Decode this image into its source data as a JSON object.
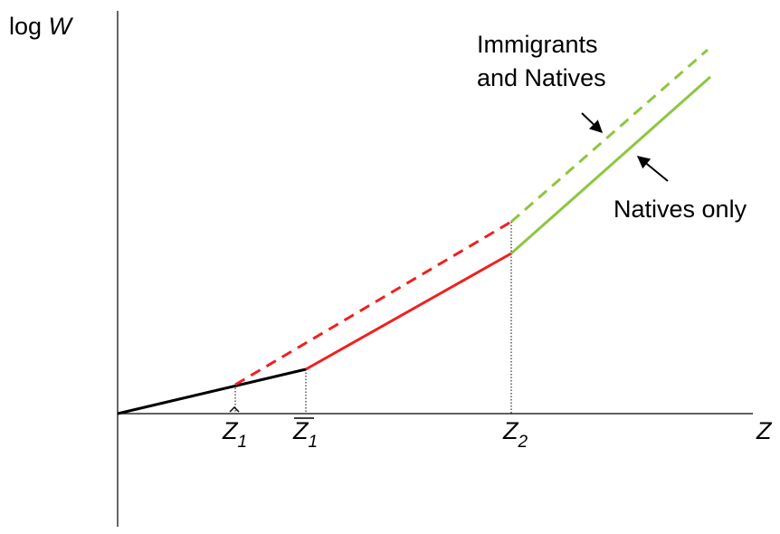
{
  "y_axis_label": {
    "prefix": "log",
    "variable": "W"
  },
  "x_axis_label": "Z",
  "thresholds": [
    {
      "symbol": "Z",
      "subscript": "1"
    },
    {
      "symbol": "Z",
      "subscript": "1"
    },
    {
      "symbol": "Z",
      "subscript": "2"
    }
  ],
  "annotations": {
    "immigrants_and_natives": [
      "Immigrants",
      "and Natives"
    ],
    "natives_only": "Natives only"
  }
}
